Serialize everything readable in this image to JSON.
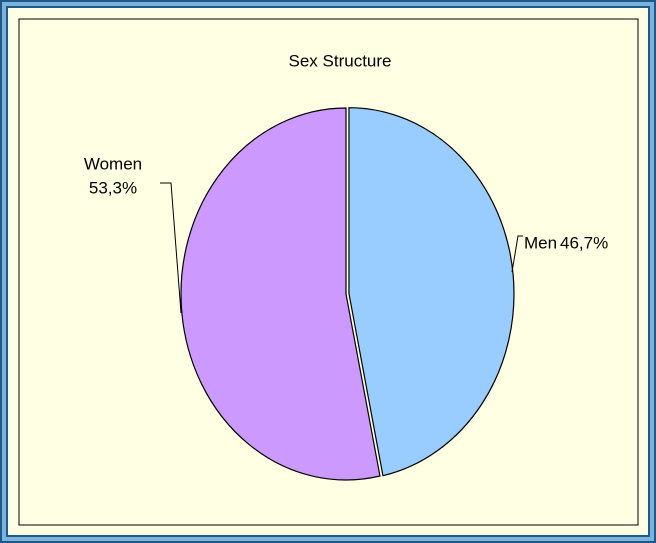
{
  "chart_data": {
    "type": "pie",
    "title": "Sex Structure",
    "categories": [
      "Men",
      "Women"
    ],
    "values": [
      46.7,
      53.3
    ],
    "value_labels": [
      "46,7%",
      "53,3%"
    ],
    "colors": [
      "#99ccff",
      "#cc99ff"
    ]
  }
}
